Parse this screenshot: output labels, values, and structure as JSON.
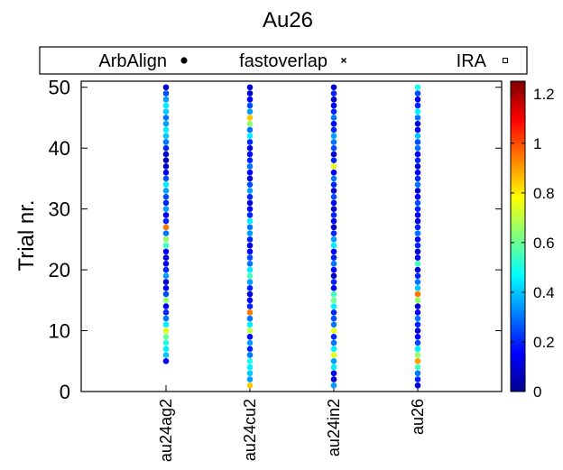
{
  "chart_data": {
    "type": "scatter",
    "title": "Au26",
    "ylabel": "Trial nr.",
    "xlabel": "",
    "categories": [
      "au24ag2",
      "au24cu2",
      "au24in2",
      "au26"
    ],
    "ylim": [
      0,
      51
    ],
    "yticks": [
      0,
      10,
      20,
      30,
      40,
      50
    ],
    "grid": false,
    "legend": {
      "placement": "top",
      "entries": [
        {
          "label": "ArbAlign",
          "marker": "filled-circle"
        },
        {
          "label": "fastoverlap",
          "marker": "cross"
        },
        {
          "label": "IRA",
          "marker": "open-square"
        }
      ]
    },
    "colorbar": {
      "range": [
        0,
        1.25
      ],
      "ticks": [
        0,
        0.2,
        0.4,
        0.6,
        0.8,
        1,
        1.2
      ],
      "tick_labels": [
        "0",
        "0.2",
        "0.4",
        "0.6",
        "0.8",
        "1",
        "1.2"
      ],
      "colormap": "jet"
    },
    "series": [
      {
        "category": "au24ag2",
        "trials": [
          5,
          6,
          7,
          8,
          9,
          10,
          11,
          12,
          13,
          14,
          15,
          16,
          17,
          18,
          19,
          20,
          21,
          22,
          23,
          24,
          25,
          26,
          27,
          28,
          29,
          30,
          31,
          32,
          33,
          34,
          35,
          36,
          37,
          38,
          39,
          40,
          41,
          42,
          43,
          44,
          45,
          46,
          47,
          48,
          49,
          50
        ],
        "values": [
          0.15,
          0.4,
          0.45,
          0.5,
          0.6,
          0.75,
          0.45,
          0.3,
          0.2,
          0.15,
          0.65,
          0.25,
          0.15,
          0.1,
          0.35,
          0.2,
          0.15,
          0.1,
          0.15,
          0.55,
          0.65,
          0.3,
          0.95,
          0.2,
          0.15,
          0.35,
          0.2,
          0.25,
          0.35,
          0.45,
          0.25,
          0.15,
          0.1,
          0.08,
          0.1,
          0.2,
          0.3,
          0.4,
          0.45,
          0.35,
          0.3,
          0.4,
          0.45,
          0.35,
          0.25,
          0.1
        ]
      },
      {
        "category": "au24cu2",
        "trials": [
          1,
          2,
          3,
          4,
          5,
          6,
          7,
          8,
          9,
          10,
          11,
          12,
          13,
          14,
          15,
          16,
          17,
          18,
          19,
          20,
          21,
          22,
          23,
          24,
          25,
          26,
          27,
          28,
          29,
          30,
          31,
          32,
          33,
          34,
          35,
          36,
          37,
          38,
          39,
          40,
          41,
          42,
          43,
          44,
          45,
          46,
          47,
          48,
          49,
          50
        ],
        "values": [
          0.85,
          0.35,
          0.4,
          0.45,
          0.5,
          0.3,
          0.2,
          0.35,
          0.15,
          0.7,
          0.45,
          0.3,
          0.95,
          0.2,
          0.15,
          0.1,
          0.2,
          0.35,
          0.55,
          0.45,
          0.3,
          0.25,
          0.15,
          0.1,
          0.2,
          0.35,
          0.3,
          0.45,
          0.2,
          0.15,
          0.1,
          0.2,
          0.35,
          0.25,
          0.1,
          0.15,
          0.3,
          0.2,
          0.15,
          0.1,
          0.2,
          0.45,
          0.3,
          0.65,
          0.85,
          0.35,
          0.25,
          0.15,
          0.1,
          0.1
        ]
      },
      {
        "category": "au24in2",
        "trials": [
          1,
          2,
          3,
          4,
          5,
          6,
          7,
          8,
          9,
          10,
          11,
          12,
          13,
          14,
          15,
          16,
          17,
          18,
          19,
          20,
          21,
          22,
          23,
          24,
          25,
          26,
          27,
          28,
          29,
          30,
          31,
          32,
          33,
          34,
          35,
          36,
          37,
          38,
          39,
          40,
          41,
          42,
          43,
          44,
          45,
          46,
          47,
          48,
          49,
          50
        ],
        "values": [
          0.35,
          0.1,
          0.15,
          0.45,
          0.35,
          0.75,
          0.45,
          0.3,
          0.2,
          0.75,
          0.3,
          0.25,
          0.2,
          0.45,
          0.6,
          0.55,
          0.15,
          0.2,
          0.1,
          0.15,
          0.3,
          0.2,
          0.15,
          0.45,
          0.35,
          0.2,
          0.1,
          0.15,
          0.2,
          0.1,
          0.15,
          0.25,
          0.1,
          0.2,
          0.3,
          0.15,
          0.75,
          0.2,
          0.1,
          0.25,
          0.3,
          0.35,
          0.2,
          0.15,
          0.3,
          0.2,
          0.15,
          0.1,
          0.2,
          0.1
        ]
      },
      {
        "category": "au26",
        "trials": [
          1,
          2,
          3,
          4,
          5,
          6,
          7,
          8,
          9,
          10,
          11,
          12,
          13,
          14,
          15,
          16,
          17,
          18,
          19,
          20,
          21,
          22,
          23,
          24,
          25,
          26,
          27,
          28,
          29,
          30,
          31,
          32,
          33,
          34,
          35,
          36,
          37,
          38,
          39,
          40,
          41,
          42,
          43,
          44,
          45,
          46,
          47,
          48,
          49,
          50
        ],
        "values": [
          0.1,
          0.2,
          0.3,
          0.55,
          0.9,
          0.65,
          0.45,
          0.25,
          0.15,
          0.1,
          0.2,
          0.3,
          0.15,
          0.1,
          0.65,
          0.95,
          0.4,
          0.3,
          0.2,
          0.1,
          0.55,
          0.15,
          0.1,
          0.2,
          0.15,
          0.3,
          0.2,
          0.1,
          0.15,
          0.2,
          0.25,
          0.15,
          0.1,
          0.3,
          0.2,
          0.15,
          0.1,
          0.2,
          0.15,
          0.3,
          0.25,
          0.4,
          0.15,
          0.1,
          0.3,
          0.45,
          0.2,
          0.15,
          0.25,
          0.5
        ]
      }
    ]
  }
}
